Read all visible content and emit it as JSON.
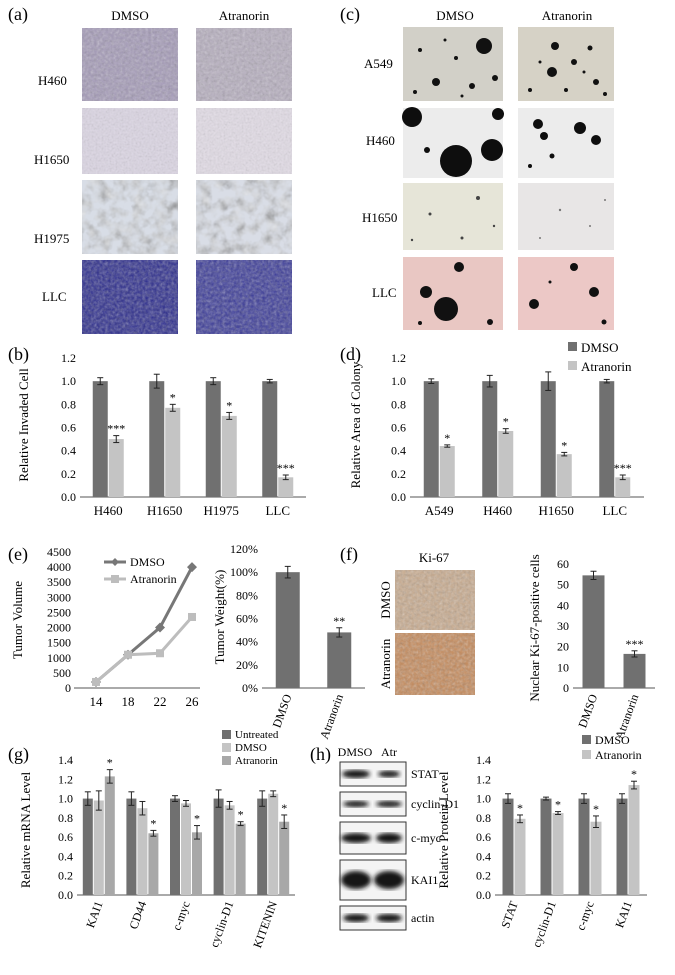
{
  "panels": {
    "a": {
      "label": "(a)",
      "columns": [
        "DMSO",
        "Atranorin"
      ],
      "rows": [
        "H460",
        "H1650",
        "H1975",
        "LLC"
      ]
    },
    "c": {
      "label": "(c)",
      "columns": [
        "DMSO",
        "Atranorin"
      ],
      "rows": [
        "A549",
        "H460",
        "H1650",
        "LLC"
      ]
    },
    "f_images": {
      "label": "(f)",
      "title": "Ki-67",
      "rows": [
        "DMSO",
        "Atranorin"
      ]
    },
    "h_blot": {
      "label": "(h)",
      "columns": [
        "DMSO",
        "Atr"
      ],
      "rows": [
        "STAT",
        "cyclin-D1",
        "c-myc",
        "KAI1",
        "actin"
      ]
    }
  },
  "labels": {
    "b": "(b)",
    "d": "(d)",
    "e": "(e)",
    "g": "(g)"
  },
  "colors": {
    "dark": "#707070",
    "light": "#c4c4c4",
    "mid": "#a8a8a8",
    "line": "#999999",
    "blot": "#141414"
  },
  "chart_data": [
    {
      "id": "b",
      "type": "bar",
      "ylabel": "Relative Invaded  Cell",
      "categories": [
        "H460",
        "H1650",
        "H1975",
        "LLC"
      ],
      "ylim": [
        0,
        1.2
      ],
      "yticks": [
        "0.0",
        "0.2",
        "0.4",
        "0.6",
        "0.8",
        "1.0",
        "1.2"
      ],
      "series": [
        {
          "values": [
            1.0,
            1.0,
            1.0,
            1.0
          ],
          "errors": [
            0.03,
            0.06,
            0.03,
            0.015
          ]
        },
        {
          "values": [
            0.5,
            0.77,
            0.7,
            0.17
          ],
          "errors": [
            0.03,
            0.03,
            0.03,
            0.02
          ]
        }
      ],
      "annotations": [
        "***",
        "*",
        "*",
        "***"
      ]
    },
    {
      "id": "d",
      "type": "bar",
      "ylabel": "Relative Area of Colony",
      "categories": [
        "A549",
        "H460",
        "H1650",
        "LLC"
      ],
      "ylim": [
        0,
        1.2
      ],
      "yticks": [
        "0.0",
        "0.2",
        "0.4",
        "0.6",
        "0.8",
        "1.0",
        "1.2"
      ],
      "legend": [
        "DMSO",
        "Atranorin"
      ],
      "legend_position": "top-right",
      "series": [
        {
          "name": "DMSO",
          "values": [
            1.0,
            1.0,
            1.0,
            1.0
          ],
          "errors": [
            0.02,
            0.05,
            0.08,
            0.015
          ]
        },
        {
          "name": "Atranorin",
          "values": [
            0.44,
            0.57,
            0.37,
            0.17
          ],
          "errors": [
            0.01,
            0.02,
            0.015,
            0.02
          ]
        }
      ],
      "annotations": [
        "*",
        "*",
        "*",
        "***"
      ]
    },
    {
      "id": "e1",
      "type": "line",
      "ylabel": "Tumor  Volume",
      "x": [
        "14",
        "18",
        "22",
        "26"
      ],
      "ylim": [
        0,
        4500
      ],
      "yticks": [
        "0",
        "500",
        "1000",
        "1500",
        "2000",
        "2500",
        "3000",
        "3500",
        "4000",
        "4500"
      ],
      "legend": [
        "DMSO",
        "Atranorin"
      ],
      "series": [
        {
          "name": "DMSO",
          "values": [
            200,
            1100,
            2000,
            4000
          ]
        },
        {
          "name": "Atranorin",
          "values": [
            200,
            1100,
            1150,
            2350
          ]
        }
      ]
    },
    {
      "id": "e2",
      "type": "bar",
      "ylabel": "Tumor Weight(%)",
      "categories": [
        "DMSO",
        "Atranorin"
      ],
      "ylim": [
        0,
        120
      ],
      "yticks": [
        "0%",
        "20%",
        "40%",
        "60%",
        "80%",
        "100%",
        "120%"
      ],
      "series": [
        {
          "values": [
            100,
            48
          ],
          "errors": [
            5,
            4
          ]
        }
      ],
      "annotations": [
        "",
        "**"
      ]
    },
    {
      "id": "f",
      "type": "bar",
      "ylabel": "Nuclear Ki-67-positive cells",
      "categories": [
        "DMSO",
        "Atranorin"
      ],
      "ylim": [
        0,
        60
      ],
      "yticks": [
        "0",
        "10",
        "20",
        "30",
        "40",
        "50",
        "60"
      ],
      "series": [
        {
          "values": [
            54.5,
            16.5
          ],
          "errors": [
            2,
            1.5
          ]
        }
      ],
      "annotations": [
        "",
        "***"
      ]
    },
    {
      "id": "g",
      "type": "bar",
      "ylabel": "Relative mRNA Level",
      "categories": [
        "KAI1",
        "CD44",
        "c-myc",
        "cyclin-D1",
        "KITENIN"
      ],
      "ylim": [
        0,
        1.4
      ],
      "yticks": [
        "0.0",
        "0.2",
        "0.4",
        "0.6",
        "0.8",
        "1.0",
        "1.2",
        "1.4"
      ],
      "legend": [
        "Untreated",
        "DMSO",
        "Atranorin"
      ],
      "legend_position": "top-right",
      "series": [
        {
          "name": "Untreated",
          "values": [
            1.0,
            1.0,
            1.0,
            1.0,
            1.0
          ],
          "errors": [
            0.07,
            0.07,
            0.03,
            0.09,
            0.08
          ]
        },
        {
          "name": "DMSO",
          "values": [
            0.98,
            0.9,
            0.95,
            0.93,
            1.05
          ],
          "errors": [
            0.1,
            0.07,
            0.03,
            0.04,
            0.03
          ]
        },
        {
          "name": "Atranorin",
          "values": [
            1.23,
            0.64,
            0.65,
            0.74,
            0.76
          ],
          "errors": [
            0.07,
            0.03,
            0.07,
            0.02,
            0.07
          ]
        }
      ],
      "annotations": [
        "*",
        "*",
        "*",
        "*",
        "*"
      ]
    },
    {
      "id": "h",
      "type": "bar",
      "ylabel": "Relative Protein Level",
      "categories": [
        "STAT",
        "cyclin-D1",
        "c-myc",
        "KAI1"
      ],
      "ylim": [
        0,
        1.4
      ],
      "yticks": [
        "0.0",
        "0.2",
        "0.4",
        "0.6",
        "0.8",
        "1.0",
        "1.2",
        "1.4"
      ],
      "legend": [
        "DMSO",
        "Atranorin"
      ],
      "legend_position": "top-right",
      "series": [
        {
          "name": "DMSO",
          "values": [
            1.0,
            1.0,
            1.0,
            1.0
          ],
          "errors": [
            0.05,
            0.015,
            0.05,
            0.05
          ]
        },
        {
          "name": "Atranorin",
          "values": [
            0.79,
            0.85,
            0.76,
            1.14
          ],
          "errors": [
            0.04,
            0.015,
            0.06,
            0.04
          ]
        }
      ],
      "annotations": [
        "*",
        "*",
        "*",
        "*"
      ]
    }
  ]
}
